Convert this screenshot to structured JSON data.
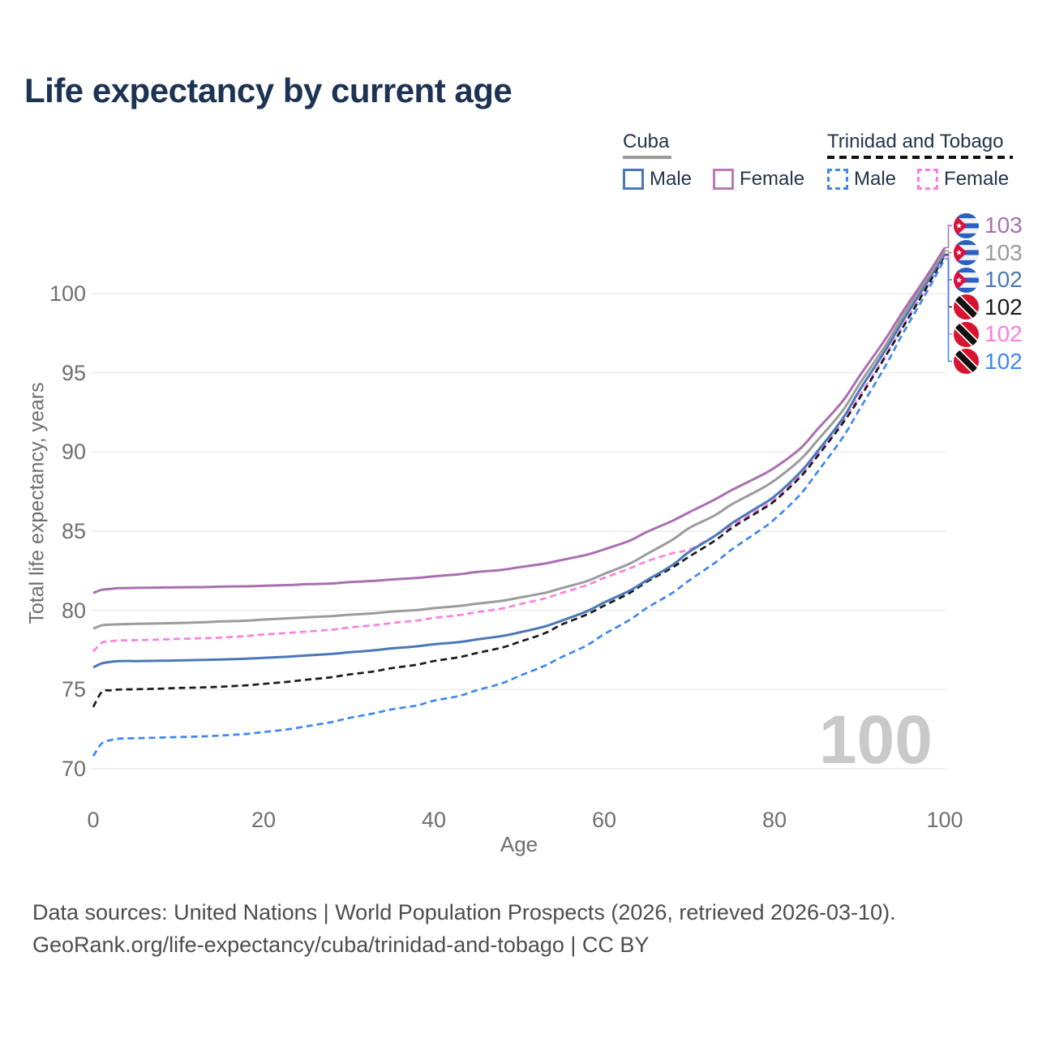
{
  "header": {
    "title": "Life expectancy by current age"
  },
  "legend": {
    "cuba": {
      "title": "Cuba",
      "male_label": "Male",
      "female_label": "Female"
    },
    "tt": {
      "title": "Trinidad and Tobago",
      "male_label": "Male",
      "female_label": "Female"
    }
  },
  "watermark": "100",
  "footer": {
    "line1": "Data sources: United Nations | World Population Prospects (2026, retrieved 2026-03-10).",
    "line2": "GeoRank.org/life-expectancy/cuba/trinidad-and-tobago | CC BY"
  },
  "colors": {
    "title_text": "#1c3353",
    "legend_text": "#22354a",
    "axis_text": "#6f6f6f",
    "gridline": "#ececec",
    "watermark": "#c9c9c9",
    "footer_text": "#4d4d4d",
    "cuba_underline": "#9b9b9b",
    "tt_underline": "#111111"
  },
  "chart_data": {
    "type": "line",
    "title": "Life expectancy by current age",
    "xlabel": "Age",
    "ylabel": "Total life expectancy, years",
    "xlim": [
      0,
      100
    ],
    "ylim": [
      70,
      103
    ],
    "x_ticks": [
      0,
      20,
      40,
      60,
      80,
      100
    ],
    "y_ticks": [
      70,
      75,
      80,
      85,
      90,
      95,
      100
    ],
    "grid": "horizontal-only",
    "legend_position": "top-right",
    "watermark": "100",
    "ages": [
      0,
      1,
      2,
      3,
      5,
      8,
      10,
      13,
      15,
      18,
      20,
      23,
      25,
      28,
      30,
      33,
      35,
      38,
      40,
      43,
      45,
      48,
      50,
      53,
      55,
      58,
      60,
      63,
      65,
      68,
      70,
      73,
      75,
      78,
      80,
      83,
      85,
      88,
      90,
      93,
      95,
      98,
      100
    ],
    "series": [
      {
        "id": "tt-male",
        "name": "Trinidad and Tobago Male",
        "country": "Trinidad and Tobago",
        "sex": "Male",
        "color": "#3e87f3",
        "style": "dashed",
        "flag": "tt",
        "end_label": "102",
        "values": [
          70.8,
          71.6,
          71.8,
          71.9,
          71.93,
          71.97,
          72.0,
          72.05,
          72.1,
          72.2,
          72.32,
          72.5,
          72.68,
          72.95,
          73.2,
          73.5,
          73.75,
          74.0,
          74.3,
          74.6,
          74.95,
          75.4,
          75.85,
          76.5,
          77.05,
          77.8,
          78.5,
          79.4,
          80.15,
          81.1,
          81.9,
          83.0,
          83.85,
          84.95,
          85.75,
          87.3,
          88.7,
          90.9,
          92.7,
          95.4,
          97.4,
          100.2,
          102.2
        ]
      },
      {
        "id": "tt-female",
        "name": "Trinidad and Tobago Female",
        "country": "Trinidad and Tobago",
        "sex": "Female",
        "color": "#fc7ee0",
        "style": "dashed",
        "flag": "tt",
        "end_label": "102",
        "values": [
          77.4,
          77.95,
          78.05,
          78.1,
          78.12,
          78.16,
          78.2,
          78.24,
          78.28,
          78.38,
          78.48,
          78.58,
          78.66,
          78.78,
          78.92,
          79.06,
          79.2,
          79.36,
          79.52,
          79.7,
          79.88,
          80.12,
          80.38,
          80.75,
          81.1,
          81.6,
          82.05,
          82.65,
          83.1,
          83.6,
          83.85,
          84.7,
          85.35,
          86.3,
          87.0,
          88.5,
          89.8,
          91.9,
          93.55,
          96.05,
          97.85,
          100.55,
          102.38
        ]
      },
      {
        "id": "tt-total",
        "name": "Trinidad and Tobago",
        "country": "Trinidad and Tobago",
        "sex": "Both",
        "color": "#1a1a1a",
        "style": "dashed",
        "flag": "tt",
        "end_label": "102",
        "values": [
          73.9,
          74.85,
          74.95,
          75.0,
          75.02,
          75.06,
          75.1,
          75.14,
          75.18,
          75.27,
          75.36,
          75.5,
          75.62,
          75.78,
          75.95,
          76.15,
          76.35,
          76.57,
          76.8,
          77.05,
          77.3,
          77.65,
          78.0,
          78.55,
          79.1,
          79.75,
          80.3,
          81.1,
          81.8,
          82.7,
          83.4,
          84.4,
          85.2,
          86.2,
          86.9,
          88.4,
          89.7,
          91.8,
          93.4,
          96.0,
          97.8,
          100.5,
          102.42
        ]
      },
      {
        "id": "cuba-male",
        "name": "Cuba Male",
        "country": "Cuba",
        "sex": "Male",
        "color": "#4a78b7",
        "style": "solid",
        "flag": "cuba",
        "end_label": "102",
        "values": [
          76.4,
          76.65,
          76.75,
          76.8,
          76.8,
          76.82,
          76.84,
          76.87,
          76.9,
          76.95,
          77.0,
          77.08,
          77.15,
          77.25,
          77.35,
          77.48,
          77.6,
          77.73,
          77.86,
          78.0,
          78.16,
          78.38,
          78.6,
          78.98,
          79.35,
          79.95,
          80.5,
          81.25,
          81.9,
          82.85,
          83.7,
          84.7,
          85.5,
          86.5,
          87.2,
          88.7,
          90.0,
          92.1,
          93.9,
          96.4,
          98.2,
          100.8,
          102.5
        ]
      },
      {
        "id": "cuba-total",
        "name": "Cuba",
        "country": "Cuba",
        "sex": "Both",
        "color": "#9b9b9b",
        "style": "solid",
        "flag": "cuba",
        "end_label": "103",
        "values": [
          78.85,
          79.05,
          79.1,
          79.12,
          79.15,
          79.18,
          79.2,
          79.25,
          79.3,
          79.35,
          79.42,
          79.5,
          79.56,
          79.64,
          79.72,
          79.82,
          79.92,
          80.02,
          80.14,
          80.28,
          80.42,
          80.6,
          80.8,
          81.1,
          81.4,
          81.85,
          82.3,
          82.95,
          83.55,
          84.45,
          85.2,
          86.0,
          86.7,
          87.55,
          88.2,
          89.5,
          90.7,
          92.6,
          94.3,
          96.7,
          98.5,
          101.0,
          102.7
        ]
      },
      {
        "id": "cuba-female",
        "name": "Cuba Female",
        "country": "Cuba",
        "sex": "Female",
        "color": "#a96fb0",
        "style": "solid",
        "flag": "cuba",
        "end_label": "103",
        "values": [
          81.1,
          81.3,
          81.35,
          81.4,
          81.42,
          81.44,
          81.45,
          81.47,
          81.5,
          81.52,
          81.55,
          81.6,
          81.65,
          81.7,
          81.78,
          81.86,
          81.95,
          82.05,
          82.15,
          82.28,
          82.42,
          82.56,
          82.72,
          82.95,
          83.18,
          83.52,
          83.85,
          84.4,
          84.95,
          85.65,
          86.2,
          87.0,
          87.6,
          88.4,
          89.0,
          90.2,
          91.4,
          93.2,
          94.8,
          97.1,
          98.8,
          101.2,
          102.9
        ]
      }
    ],
    "end_rows": [
      {
        "series": "cuba-female",
        "label": "103",
        "flag": "cuba"
      },
      {
        "series": "cuba-total",
        "label": "103",
        "flag": "cuba"
      },
      {
        "series": "cuba-male",
        "label": "102",
        "flag": "cuba"
      },
      {
        "series": "tt-total",
        "label": "102",
        "flag": "tt"
      },
      {
        "series": "tt-female",
        "label": "102",
        "flag": "tt"
      },
      {
        "series": "tt-male",
        "label": "102",
        "flag": "tt"
      }
    ]
  }
}
